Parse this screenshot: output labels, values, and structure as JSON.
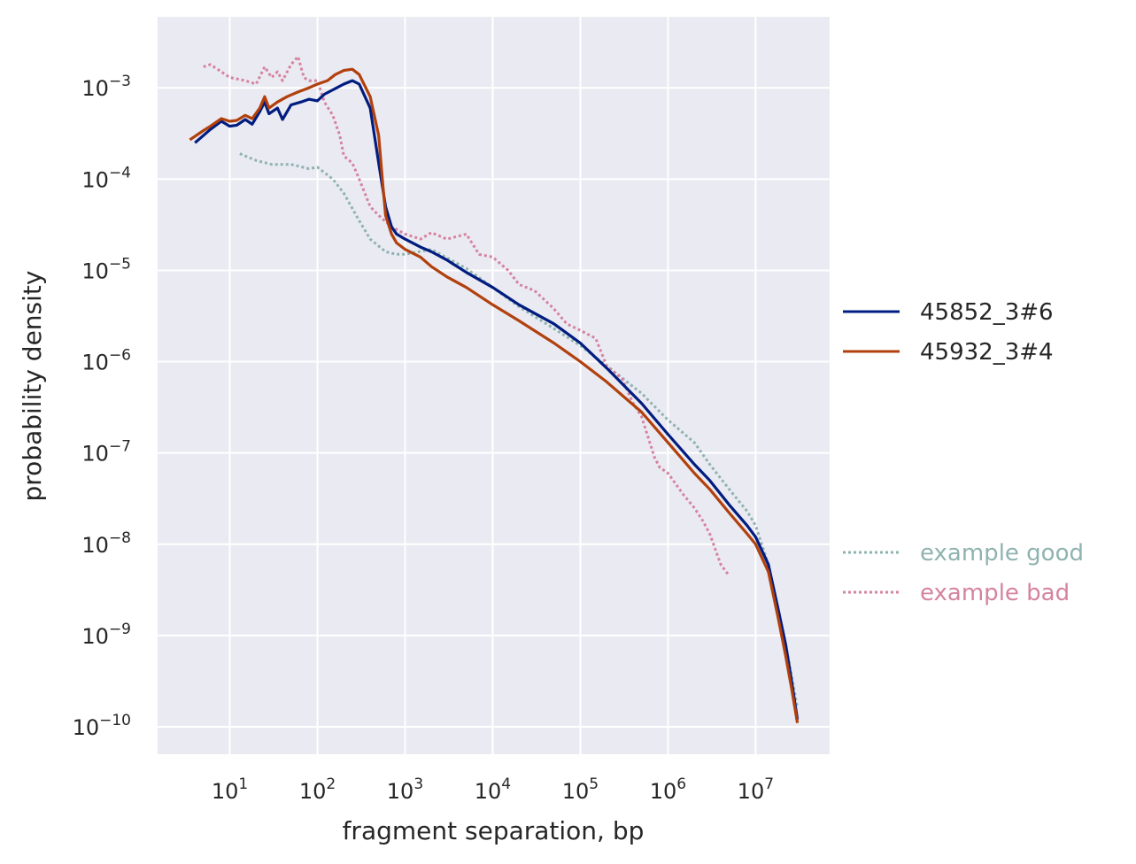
{
  "chart_data": {
    "type": "line",
    "title": "",
    "xlabel": "fragment separation, bp",
    "ylabel": "probability density",
    "xscale": "log",
    "yscale": "log",
    "xlim": [
      1.5,
      70000000
    ],
    "ylim": [
      5e-11,
      0.006
    ],
    "grid": true,
    "legend_placement": "right",
    "x_ticks": [
      {
        "base": "10",
        "exp": "1",
        "value": 10
      },
      {
        "base": "10",
        "exp": "2",
        "value": 100
      },
      {
        "base": "10",
        "exp": "3",
        "value": 1000
      },
      {
        "base": "10",
        "exp": "4",
        "value": 10000
      },
      {
        "base": "10",
        "exp": "5",
        "value": 100000
      },
      {
        "base": "10",
        "exp": "6",
        "value": 1000000
      },
      {
        "base": "10",
        "exp": "7",
        "value": 10000000
      }
    ],
    "y_ticks": [
      {
        "base": "10",
        "exp": "−3",
        "value": 0.001
      },
      {
        "base": "10",
        "exp": "−4",
        "value": 0.0001
      },
      {
        "base": "10",
        "exp": "−5",
        "value": 1e-05
      },
      {
        "base": "10",
        "exp": "−6",
        "value": 1e-06
      },
      {
        "base": "10",
        "exp": "−7",
        "value": 1e-07
      },
      {
        "base": "10",
        "exp": "−8",
        "value": 1e-08
      },
      {
        "base": "10",
        "exp": "−9",
        "value": 1e-09
      },
      {
        "base": "10",
        "exp": "−10",
        "value": 1e-10
      }
    ],
    "series": [
      {
        "name": "45852_3#6",
        "color": "#001c7f",
        "style": "solid",
        "group": "main",
        "points": [
          [
            4,
            0.00025
          ],
          [
            5,
            0.0003
          ],
          [
            6,
            0.00035
          ],
          [
            8,
            0.00043
          ],
          [
            10,
            0.00038
          ],
          [
            12,
            0.00039
          ],
          [
            15,
            0.00045
          ],
          [
            18,
            0.0004
          ],
          [
            22,
            0.00055
          ],
          [
            25,
            0.0007
          ],
          [
            28,
            0.00052
          ],
          [
            35,
            0.0006
          ],
          [
            40,
            0.00045
          ],
          [
            50,
            0.00065
          ],
          [
            65,
            0.0007
          ],
          [
            80,
            0.00075
          ],
          [
            100,
            0.00072
          ],
          [
            120,
            0.00085
          ],
          [
            150,
            0.00095
          ],
          [
            200,
            0.0011
          ],
          [
            250,
            0.0012
          ],
          [
            300,
            0.0011
          ],
          [
            400,
            0.0006
          ],
          [
            500,
            0.00015
          ],
          [
            600,
            5e-05
          ],
          [
            700,
            3e-05
          ],
          [
            800,
            2.5e-05
          ],
          [
            1000,
            2.2e-05
          ],
          [
            1500,
            1.8e-05
          ],
          [
            2000,
            1.6e-05
          ],
          [
            3000,
            1.3e-05
          ],
          [
            5000,
            9.5e-06
          ],
          [
            10000.0,
            6.5e-06
          ],
          [
            20000.0,
            4.2e-06
          ],
          [
            50000.0,
            2.6e-06
          ],
          [
            100000.0,
            1.6e-06
          ],
          [
            200000.0,
            8.5e-07
          ],
          [
            500000.0,
            3.5e-07
          ],
          [
            1000000.0,
            1.6e-07
          ],
          [
            2000000.0,
            7.5e-08
          ],
          [
            3000000.0,
            5e-08
          ],
          [
            5000000.0,
            2.7e-08
          ],
          [
            8000000.0,
            1.6e-08
          ],
          [
            10000000.0,
            1.2e-08
          ],
          [
            14000000.0,
            6e-09
          ],
          [
            18000000.0,
            2e-09
          ],
          [
            22000000.0,
            8e-10
          ],
          [
            26000000.0,
            3e-10
          ],
          [
            30000000.0,
            1.2e-10
          ]
        ]
      },
      {
        "name": "45932_3#4",
        "color": "#b1400d",
        "style": "solid",
        "group": "main",
        "points": [
          [
            3.5,
            0.00027
          ],
          [
            5,
            0.00034
          ],
          [
            6,
            0.00038
          ],
          [
            8,
            0.00046
          ],
          [
            10,
            0.00043
          ],
          [
            12,
            0.00044
          ],
          [
            15,
            0.0005
          ],
          [
            18,
            0.00046
          ],
          [
            22,
            0.0006
          ],
          [
            25,
            0.0008
          ],
          [
            28,
            0.0006
          ],
          [
            35,
            0.0007
          ],
          [
            45,
            0.0008
          ],
          [
            60,
            0.0009
          ],
          [
            80,
            0.001
          ],
          [
            100,
            0.0011
          ],
          [
            130,
            0.0012
          ],
          [
            160,
            0.0014
          ],
          [
            200,
            0.00155
          ],
          [
            250,
            0.0016
          ],
          [
            300,
            0.0014
          ],
          [
            400,
            0.0008
          ],
          [
            500,
            0.0003
          ],
          [
            550,
            0.0001
          ],
          [
            600,
            4e-05
          ],
          [
            700,
            2.5e-05
          ],
          [
            800,
            2e-05
          ],
          [
            1000,
            1.7e-05
          ],
          [
            1500,
            1.4e-05
          ],
          [
            2000,
            1.1e-05
          ],
          [
            3000,
            8.5e-06
          ],
          [
            5000,
            6.5e-06
          ],
          [
            10000.0,
            4.2e-06
          ],
          [
            20000.0,
            2.8e-06
          ],
          [
            50000.0,
            1.6e-06
          ],
          [
            100000.0,
            1e-06
          ],
          [
            200000.0,
            6e-07
          ],
          [
            500000.0,
            2.8e-07
          ],
          [
            1000000.0,
            1.3e-07
          ],
          [
            2000000.0,
            6e-08
          ],
          [
            3000000.0,
            4e-08
          ],
          [
            5000000.0,
            2.2e-08
          ],
          [
            8000000.0,
            1.3e-08
          ],
          [
            10000000.0,
            1e-08
          ],
          [
            14000000.0,
            5e-09
          ],
          [
            18000000.0,
            1.6e-09
          ],
          [
            22000000.0,
            6e-10
          ],
          [
            26000000.0,
            2.5e-10
          ],
          [
            30000000.0,
            1.1e-10
          ]
        ]
      },
      {
        "name": "example good",
        "color": "#8fb3b0",
        "style": "dotted",
        "group": "reference",
        "points": [
          [
            13,
            0.00019
          ],
          [
            20,
            0.00016
          ],
          [
            30,
            0.000145
          ],
          [
            50,
            0.000145
          ],
          [
            80,
            0.00013
          ],
          [
            100,
            0.000135
          ],
          [
            150,
            0.0001
          ],
          [
            200,
            7e-05
          ],
          [
            300,
            3.5e-05
          ],
          [
            400,
            2.2e-05
          ],
          [
            600,
            1.6e-05
          ],
          [
            800,
            1.5e-05
          ],
          [
            1000,
            1.5e-05
          ],
          [
            2000,
            1.7e-05
          ],
          [
            5000,
            1.05e-05
          ],
          [
            10000.0,
            6.5e-06
          ],
          [
            20000.0,
            4e-06
          ],
          [
            50000.0,
            2.3e-06
          ],
          [
            100000.0,
            1.5e-06
          ],
          [
            200000.0,
            9e-07
          ],
          [
            500000.0,
            4.5e-07
          ],
          [
            1000000.0,
            2.3e-07
          ],
          [
            2000000.0,
            1.3e-07
          ],
          [
            3000000.0,
            7.5e-08
          ],
          [
            5000000.0,
            4e-08
          ],
          [
            8000000.0,
            2.3e-08
          ],
          [
            10000000.0,
            1.6e-08
          ],
          [
            14000000.0,
            6e-09
          ],
          [
            18000000.0,
            2e-09
          ],
          [
            22000000.0,
            8e-10
          ],
          [
            26000000.0,
            3.5e-10
          ],
          [
            30000000.0,
            1.6e-10
          ]
        ]
      },
      {
        "name": "example bad",
        "color": "#d5839f",
        "style": "dotted",
        "group": "reference",
        "points": [
          [
            5,
            0.0017
          ],
          [
            6,
            0.0018
          ],
          [
            8,
            0.0015
          ],
          [
            10,
            0.0013
          ],
          [
            15,
            0.0012
          ],
          [
            20,
            0.0011
          ],
          [
            25,
            0.0017
          ],
          [
            30,
            0.0013
          ],
          [
            35,
            0.0015
          ],
          [
            40,
            0.0012
          ],
          [
            50,
            0.0018
          ],
          [
            60,
            0.0022
          ],
          [
            70,
            0.0013
          ],
          [
            80,
            0.0012
          ],
          [
            100,
            0.0012
          ],
          [
            120,
            0.0007
          ],
          [
            150,
            0.0005
          ],
          [
            180,
            0.0003
          ],
          [
            200,
            0.00018
          ],
          [
            250,
            0.00015
          ],
          [
            300,
            0.0001
          ],
          [
            400,
            5e-05
          ],
          [
            500,
            4e-05
          ],
          [
            700,
            3e-05
          ],
          [
            1000,
            2.5e-05
          ],
          [
            1500,
            2.2e-05
          ],
          [
            2000,
            2.6e-05
          ],
          [
            3000,
            2.2e-05
          ],
          [
            5000,
            2.5e-05
          ],
          [
            7000,
            1.5e-05
          ],
          [
            10000.0,
            1.4e-05
          ],
          [
            15000.0,
            1e-05
          ],
          [
            20000.0,
            7e-06
          ],
          [
            30000.0,
            6e-06
          ],
          [
            50000.0,
            3.8e-06
          ],
          [
            70000.0,
            2.6e-06
          ],
          [
            100000.0,
            2.2e-06
          ],
          [
            150000.0,
            1.8e-06
          ],
          [
            200000.0,
            9e-07
          ],
          [
            300000.0,
            6.5e-07
          ],
          [
            400000.0,
            3.5e-07
          ],
          [
            500000.0,
            2.5e-07
          ],
          [
            700000.0,
            9e-08
          ],
          [
            800000.0,
            7e-08
          ],
          [
            1000000.0,
            6e-08
          ],
          [
            1500000.0,
            3.5e-08
          ],
          [
            2000000.0,
            2.5e-08
          ],
          [
            2500000.0,
            1.8e-08
          ],
          [
            3000000.0,
            1.3e-08
          ],
          [
            4000000.0,
            6e-09
          ],
          [
            5000000.0,
            4.5e-09
          ]
        ]
      }
    ]
  }
}
